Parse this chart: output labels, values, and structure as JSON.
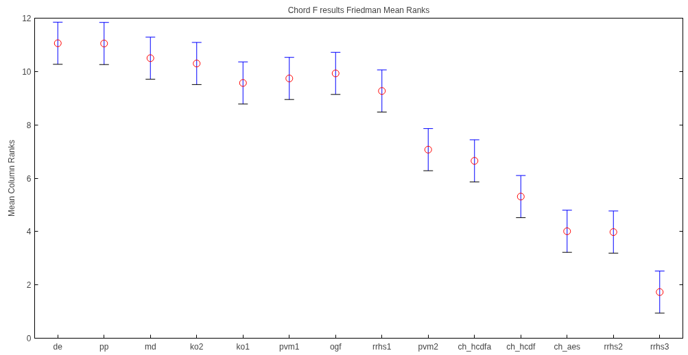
{
  "chart_data": {
    "type": "scatter",
    "title": "Chord F results Friedman Mean Ranks",
    "ylabel": "Mean Column Ranks",
    "categories": [
      "de",
      "pp",
      "md",
      "ko2",
      "ko1",
      "pvm1",
      "ogf",
      "rrhs1",
      "pvm2",
      "ch_hcdfa",
      "ch_hcdf",
      "ch_aes",
      "rrhs2",
      "rrhs3"
    ],
    "series": [
      {
        "color": "#ff0000",
        "values": [
          11.06,
          11.05,
          10.5,
          10.3,
          9.57,
          9.74,
          9.93,
          9.27,
          7.07,
          6.65,
          5.31,
          4.01,
          3.98,
          1.73
        ],
        "errors": [
          0.79,
          0.79,
          0.79,
          0.79,
          0.79,
          0.79,
          0.79,
          0.79,
          0.79,
          0.79,
          0.79,
          0.79,
          0.79,
          0.79
        ]
      }
    ],
    "ylim": [
      0,
      12
    ],
    "yticks": [
      0,
      2,
      4,
      6,
      8,
      10,
      12
    ],
    "marker": "circle",
    "grid": false
  }
}
